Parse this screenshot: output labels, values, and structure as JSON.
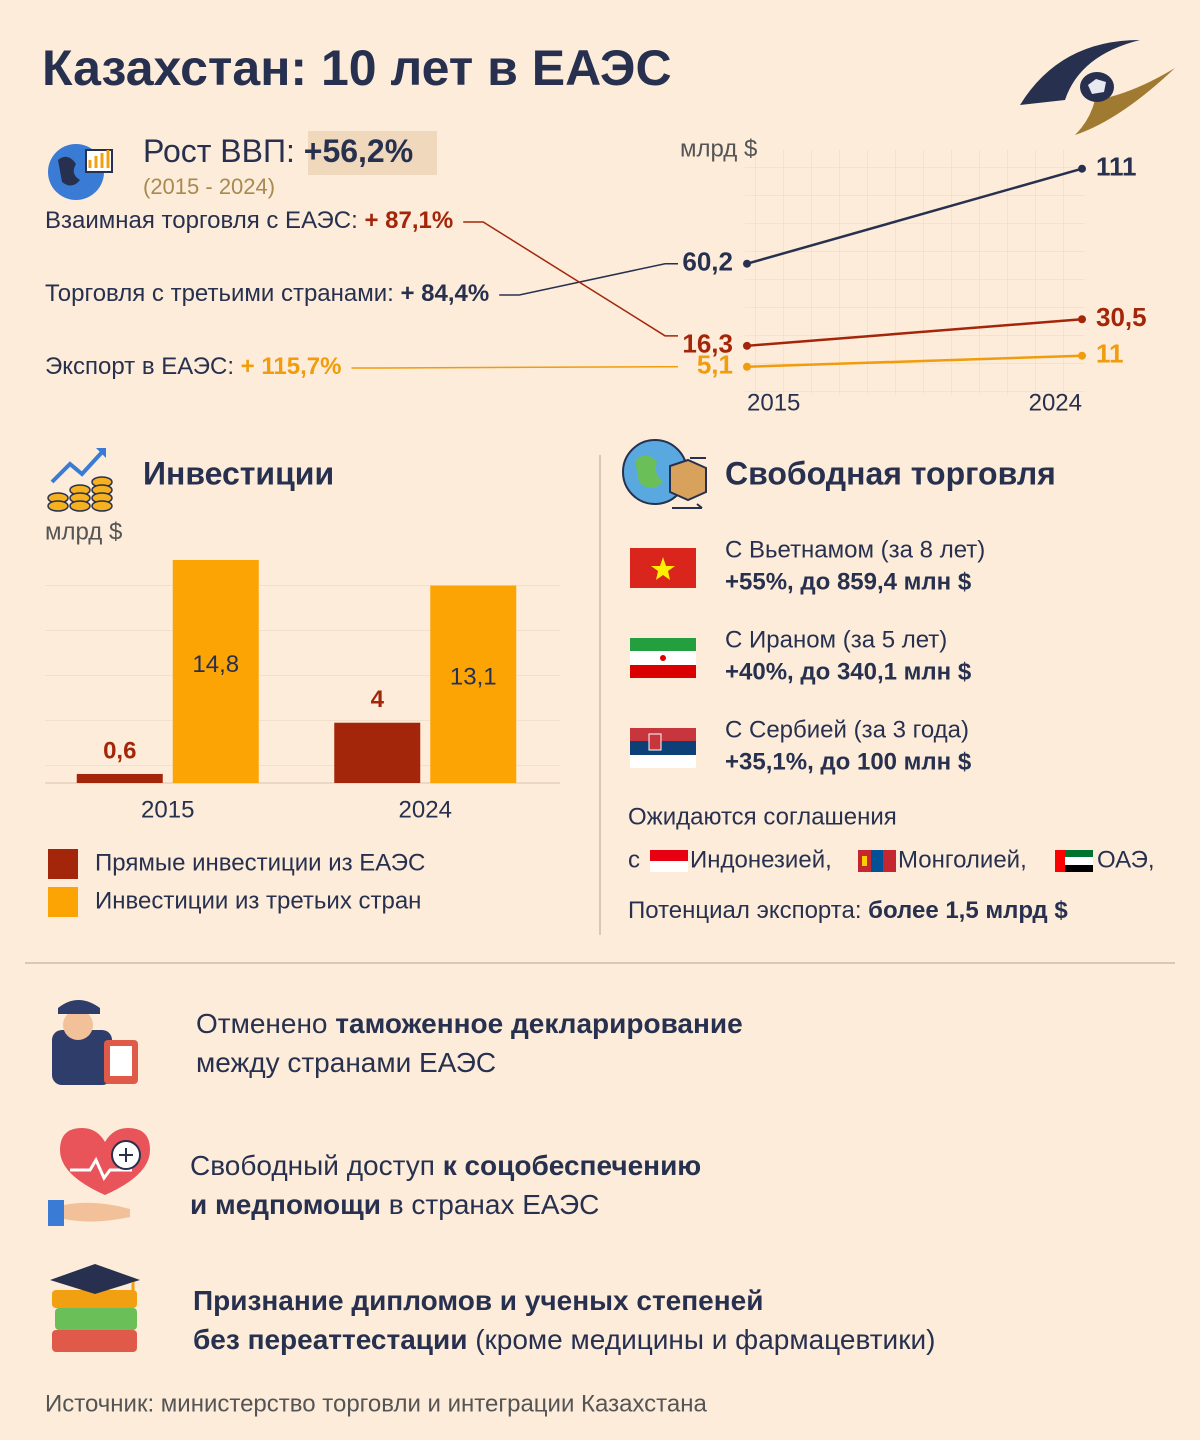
{
  "title": "Казахстан: 10 лет в ЕАЭС",
  "gdp": {
    "label": "Рост ВВП:",
    "value": "+56,2%",
    "period": "(2015 - 2024)"
  },
  "chart_data": [
    {
      "type": "line",
      "unit": "млрд $",
      "categories": [
        "2015",
        "2024"
      ],
      "ylim": [
        -10,
        121
      ],
      "series": [
        {
          "name": "Торговля с третьими странами:",
          "change": "+ 84,4%",
          "color": "#27314f",
          "values": [
            60.2,
            111
          ],
          "value_labels": [
            "60,2",
            "111"
          ]
        },
        {
          "name": "Взаимная торговля с ЕАЭС:",
          "change": "+ 87,1%",
          "color": "#a3260a",
          "values": [
            16.3,
            30.5
          ],
          "value_labels": [
            "16,3",
            "30,5"
          ]
        },
        {
          "name": "Экспорт в ЕАЭС:",
          "change": "+ 115,7%",
          "color": "#f09c0c",
          "values": [
            5.1,
            11
          ],
          "value_labels": [
            "5,1",
            "11"
          ]
        }
      ]
    },
    {
      "type": "bar",
      "title": "Инвестиции",
      "unit": "млрд $",
      "categories": [
        "2015",
        "2024"
      ],
      "ylim": [
        0,
        15
      ],
      "series": [
        {
          "name": "Прямые инвестиции из ЕАЭС",
          "color": "#a3260a",
          "values": [
            0.6,
            4
          ],
          "value_labels": [
            "0,6",
            "4"
          ]
        },
        {
          "name": "Инвестиции из третьих стран",
          "color": "#fca404",
          "values": [
            14.8,
            13.1
          ],
          "value_labels": [
            "14,8",
            "13,1"
          ]
        }
      ]
    }
  ],
  "free_trade": {
    "title": "Свободная торговля",
    "items": [
      {
        "country": "С Вьетнамом (за 8 лет)",
        "result": "+55%, до 859,4 млн $"
      },
      {
        "country": "С Ираном (за 5 лет)",
        "result": "+40%, до 340,1 млн $"
      },
      {
        "country": "С Сербией (за 3 года)",
        "result": "+35,1%, до 100 млн $"
      }
    ],
    "expected": "Ожидаются соглашения",
    "with": "с",
    "countries": [
      "Индонезией,",
      "Монголией,",
      "ОАЭ,"
    ],
    "potential_label": "Потенциал экспорта:",
    "potential_value": "более 1,5 млрд $"
  },
  "benefits": [
    {
      "lines": [
        [
          {
            "t": "Отменено ",
            "b": false
          },
          {
            "t": "таможенное декларирование",
            "b": true
          }
        ],
        [
          {
            "t": "между странами ЕАЭС",
            "b": false
          }
        ]
      ]
    },
    {
      "lines": [
        [
          {
            "t": "Свободный доступ ",
            "b": false
          },
          {
            "t": "к соцобеспечению",
            "b": true
          }
        ],
        [
          {
            "t": "и медпомощи",
            "b": true
          },
          {
            "t": " в странах ЕАЭС",
            "b": false
          }
        ]
      ]
    },
    {
      "lines": [
        [
          {
            "t": "Признание дипломов и ученых степеней",
            "b": true
          }
        ],
        [
          {
            "t": "без переаттестации",
            "b": true
          },
          {
            "t": " (кроме медицины и фармацевтики)",
            "b": false
          }
        ]
      ]
    }
  ],
  "source": "Источник: министерство торговли и интеграции Казахстана"
}
